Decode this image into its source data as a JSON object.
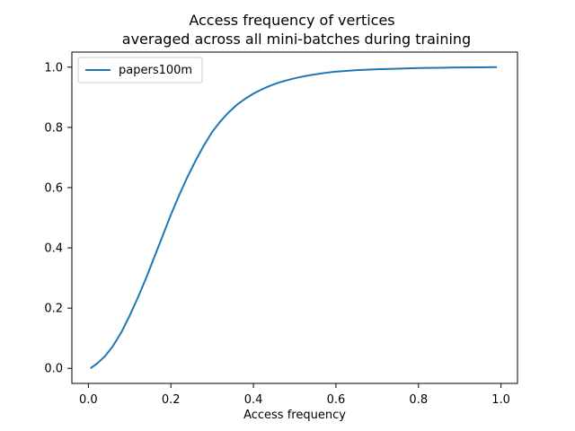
{
  "chart_data": {
    "type": "line",
    "title": "Access frequency of vertices",
    "subtitle": "averaged across all mini-batches during training",
    "xlabel": "Access frequency",
    "ylabel": "",
    "xlim": [
      -0.04,
      1.04
    ],
    "ylim": [
      -0.05,
      1.05
    ],
    "xticks": [
      0.0,
      0.2,
      0.4,
      0.6,
      0.8,
      1.0
    ],
    "xtick_labels": [
      "0.0",
      "0.2",
      "0.4",
      "0.6",
      "0.8",
      "1.0"
    ],
    "yticks": [
      0.0,
      0.2,
      0.4,
      0.6,
      0.8,
      1.0
    ],
    "ytick_labels": [
      "0.0",
      "0.2",
      "0.4",
      "0.6",
      "0.8",
      "1.0"
    ],
    "grid": false,
    "legend_position": "top-left",
    "series": [
      {
        "name": "papers100m",
        "color": "#1f77b4",
        "x": [
          0.005,
          0.02,
          0.04,
          0.06,
          0.08,
          0.1,
          0.12,
          0.14,
          0.16,
          0.18,
          0.2,
          0.22,
          0.24,
          0.26,
          0.28,
          0.3,
          0.32,
          0.34,
          0.36,
          0.38,
          0.4,
          0.42,
          0.44,
          0.46,
          0.48,
          0.5,
          0.52,
          0.54,
          0.56,
          0.58,
          0.6,
          0.65,
          0.7,
          0.75,
          0.8,
          0.85,
          0.9,
          0.95,
          0.99
        ],
        "y": [
          0.0,
          0.015,
          0.04,
          0.075,
          0.12,
          0.175,
          0.235,
          0.3,
          0.37,
          0.44,
          0.51,
          0.575,
          0.635,
          0.69,
          0.74,
          0.785,
          0.82,
          0.85,
          0.875,
          0.895,
          0.912,
          0.926,
          0.938,
          0.948,
          0.956,
          0.963,
          0.969,
          0.974,
          0.978,
          0.982,
          0.985,
          0.99,
          0.993,
          0.995,
          0.997,
          0.998,
          0.999,
          0.9995,
          1.0
        ]
      }
    ]
  }
}
